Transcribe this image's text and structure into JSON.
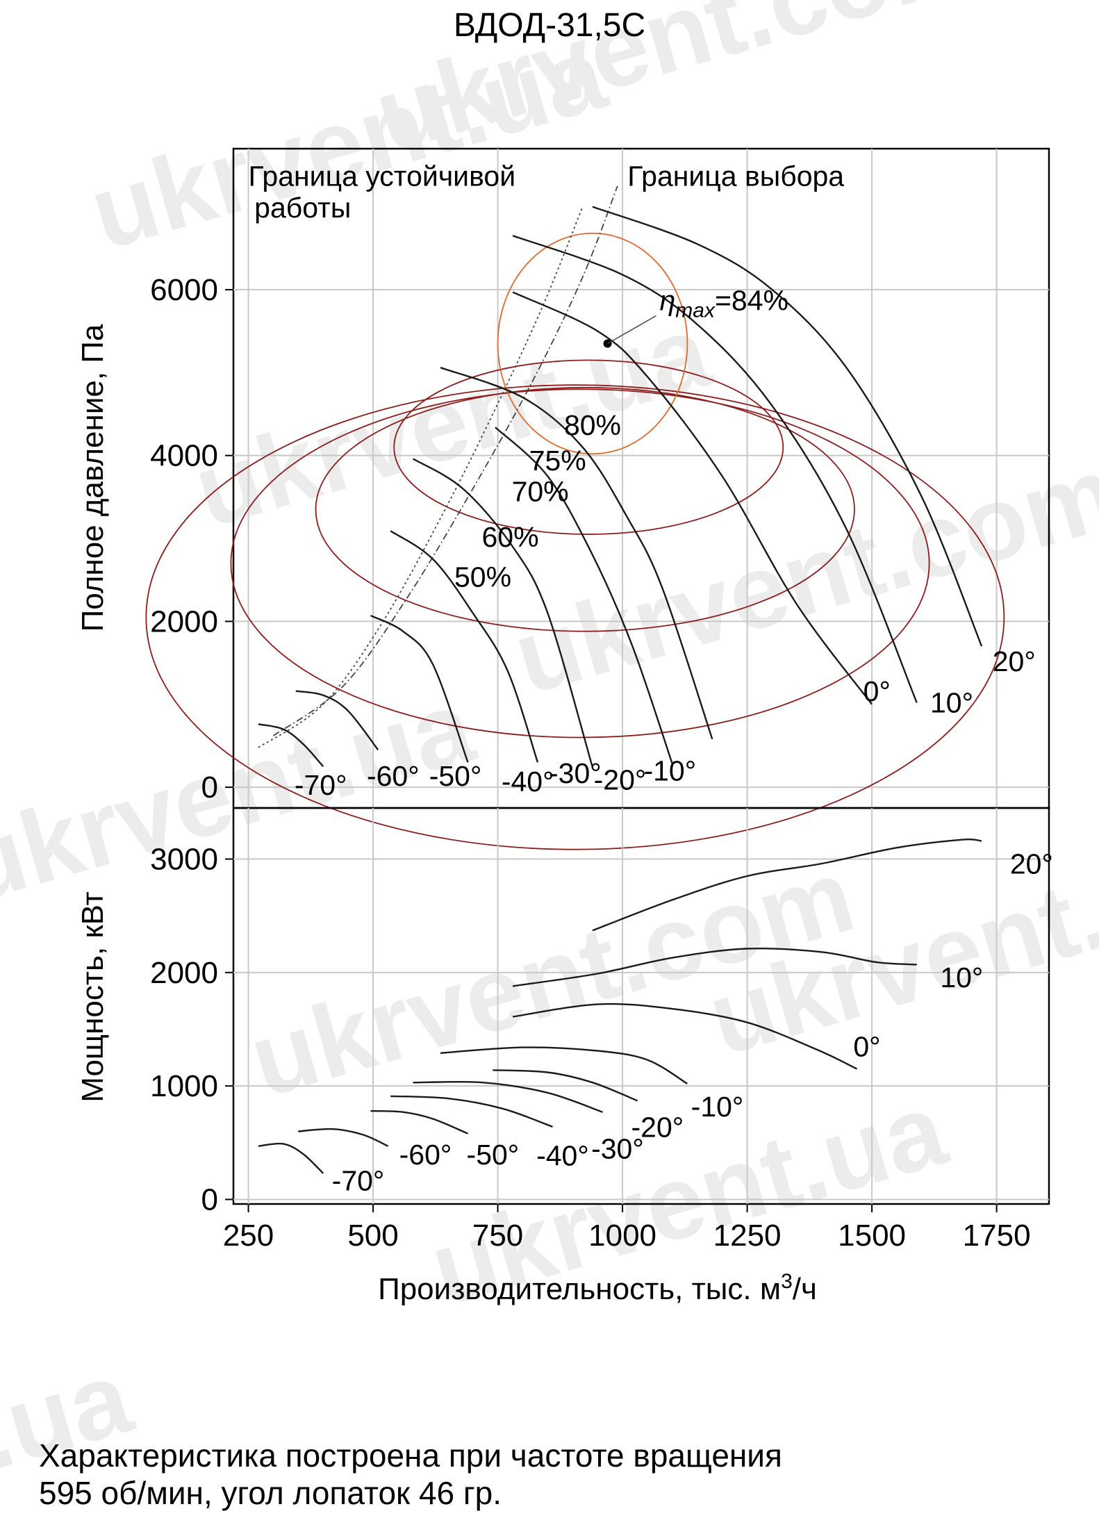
{
  "watermarks": [
    "ukrvent.ua",
    "ukrvent.com",
    "ukrvent.ua",
    "ukrvent.com",
    "ukrvent.ua",
    "ukrvent.com",
    "ukrvent.ua",
    "ukrvent.com",
    "t.ua"
  ],
  "caption": {
    "line1": "Характеристика построена при частоте вращения",
    "line2": "595 об/мин, угол лопаток 46 гр."
  },
  "chart_data": {
    "type": "line",
    "title": "ВДОД-31,5С",
    "xlabel": "Производительность, тыс. м³/ч",
    "xlim": [
      220,
      1855
    ],
    "xticks": [
      "250",
      "500",
      "750",
      "1000",
      "1250",
      "1500",
      "1750"
    ],
    "grid": true,
    "colors": {
      "curve": "#1a1a1a",
      "grid": "#c8c8c8",
      "eff_outer": "#8e1c1c",
      "eff_inner": "#e06a2a",
      "boundary": "#444444"
    },
    "pressure": {
      "ylabel": "Полное давление, Па",
      "ylim": [
        -250,
        7700
      ],
      "yticks": [
        "0",
        "2000",
        "4000",
        "6000"
      ],
      "series": [
        {
          "name": "-70°",
          "points": [
            [
              270,
              760
            ],
            [
              320,
              700
            ],
            [
              360,
              520
            ],
            [
              400,
              250
            ]
          ]
        },
        {
          "name": "-60°",
          "points": [
            [
              345,
              1160
            ],
            [
              400,
              1110
            ],
            [
              450,
              920
            ],
            [
              510,
              450
            ]
          ]
        },
        {
          "name": "-50°",
          "points": [
            [
              495,
              2070
            ],
            [
              560,
              1880
            ],
            [
              620,
              1480
            ],
            [
              690,
              300
            ]
          ]
        },
        {
          "name": "-40°",
          "points": [
            [
              535,
              3090
            ],
            [
              620,
              2750
            ],
            [
              700,
              2100
            ],
            [
              770,
              1400
            ],
            [
              830,
              300
            ]
          ]
        },
        {
          "name": "-30°",
          "points": [
            [
              580,
              3960
            ],
            [
              680,
              3600
            ],
            [
              780,
              2900
            ],
            [
              850,
              2100
            ],
            [
              940,
              240
            ]
          ]
        },
        {
          "name": "-20°",
          "points": [
            [
              745,
              4340
            ],
            [
              850,
              3750
            ],
            [
              940,
              2800
            ],
            [
              1020,
              1700
            ],
            [
              1100,
              280
            ]
          ]
        },
        {
          "name": "-10°",
          "points": [
            [
              635,
              5060
            ],
            [
              800,
              4700
            ],
            [
              920,
              4100
            ],
            [
              1010,
              3250
            ],
            [
              1080,
              2400
            ],
            [
              1180,
              580
            ]
          ]
        },
        {
          "name": "0°",
          "points": [
            [
              780,
              5970
            ],
            [
              950,
              5500
            ],
            [
              1050,
              4950
            ],
            [
              1200,
              3750
            ],
            [
              1350,
              2200
            ],
            [
              1500,
              1000
            ]
          ]
        },
        {
          "name": "10°",
          "points": [
            [
              780,
              6650
            ],
            [
              1000,
              6180
            ],
            [
              1150,
              5580
            ],
            [
              1300,
              4600
            ],
            [
              1450,
              3100
            ],
            [
              1590,
              1020
            ]
          ]
        },
        {
          "name": "20°",
          "points": [
            [
              940,
              7000
            ],
            [
              1150,
              6550
            ],
            [
              1300,
              6000
            ],
            [
              1450,
              5050
            ],
            [
              1600,
              3500
            ],
            [
              1720,
              1700
            ]
          ]
        }
      ],
      "labels": [
        "-70°",
        "-60°",
        "-50°",
        "-40°",
        "-30°",
        "-20°",
        "-10°",
        "0°",
        "10°",
        "20°"
      ],
      "efficiency_labels": [
        "80%",
        "75%",
        "70%",
        "60%",
        "50%"
      ],
      "eta_label": "η",
      "eta_sub": "max",
      "eta_value": "=84%",
      "eta_point": [
        970,
        5350
      ],
      "stability_label": [
        "Граница устойчивой",
        "работы"
      ],
      "selection_label": "Граница выбора"
    },
    "power": {
      "ylabel": "Мощность, кВт",
      "ylim": [
        -40,
        3450
      ],
      "yticks": [
        "0",
        "1000",
        "2000",
        "3000"
      ],
      "series": [
        {
          "name": "-70°",
          "points": [
            [
              270,
              470
            ],
            [
              320,
              490
            ],
            [
              360,
              400
            ],
            [
              400,
              230
            ]
          ]
        },
        {
          "name": "-60°",
          "points": [
            [
              350,
              600
            ],
            [
              420,
              620
            ],
            [
              480,
              570
            ],
            [
              530,
              470
            ]
          ]
        },
        {
          "name": "-50°",
          "points": [
            [
              495,
              780
            ],
            [
              560,
              770
            ],
            [
              620,
              710
            ],
            [
              690,
              580
            ]
          ]
        },
        {
          "name": "-40°",
          "points": [
            [
              535,
              910
            ],
            [
              650,
              890
            ],
            [
              760,
              800
            ],
            [
              860,
              640
            ]
          ]
        },
        {
          "name": "-30°",
          "points": [
            [
              580,
              1030
            ],
            [
              720,
              1030
            ],
            [
              850,
              940
            ],
            [
              960,
              770
            ]
          ]
        },
        {
          "name": "-20°",
          "points": [
            [
              740,
              1140
            ],
            [
              850,
              1120
            ],
            [
              940,
              1030
            ],
            [
              1030,
              870
            ]
          ]
        },
        {
          "name": "-10°",
          "points": [
            [
              635,
              1290
            ],
            [
              800,
              1340
            ],
            [
              950,
              1310
            ],
            [
              1050,
              1230
            ],
            [
              1130,
              1020
            ]
          ]
        },
        {
          "name": "0°",
          "points": [
            [
              780,
              1610
            ],
            [
              950,
              1720
            ],
            [
              1100,
              1680
            ],
            [
              1250,
              1560
            ],
            [
              1390,
              1320
            ],
            [
              1470,
              1150
            ]
          ]
        },
        {
          "name": "10°",
          "points": [
            [
              780,
              1880
            ],
            [
              950,
              1990
            ],
            [
              1100,
              2130
            ],
            [
              1250,
              2210
            ],
            [
              1400,
              2180
            ],
            [
              1510,
              2090
            ],
            [
              1590,
              2070
            ]
          ]
        },
        {
          "name": "20°",
          "points": [
            [
              940,
              2370
            ],
            [
              1100,
              2640
            ],
            [
              1250,
              2850
            ],
            [
              1400,
              2960
            ],
            [
              1550,
              3100
            ],
            [
              1680,
              3170
            ],
            [
              1720,
              3160
            ]
          ]
        }
      ],
      "labels": [
        "-70°",
        "-60°",
        "-50°",
        "-40°",
        "-30°",
        "-20°",
        "-10°",
        "0°",
        "10°",
        "20°"
      ]
    }
  }
}
